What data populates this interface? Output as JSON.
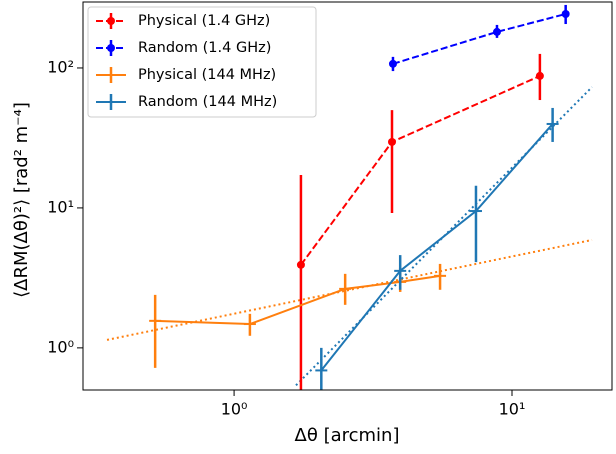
{
  "chart_data": {
    "type": "errorbar",
    "xlabel": "Δθ [arcmin]",
    "ylabel": "⟨ΔRM(Δθ)²⟩ [rad² m⁻⁴]",
    "xscale": "log",
    "yscale": "log",
    "xlim": [
      0.286,
      22.9
    ],
    "ylim": [
      0.5,
      296
    ],
    "xticks": [
      {
        "value": 1,
        "label": "10⁰"
      },
      {
        "value": 10,
        "label": "10¹"
      }
    ],
    "yticks": [
      {
        "value": 1,
        "label": "10⁰"
      },
      {
        "value": 10,
        "label": "10¹"
      },
      {
        "value": 100,
        "label": "10²"
      }
    ],
    "legend": "upper left",
    "series": [
      {
        "name": "Physical (1.4 GHz)",
        "color": "#ff0000",
        "linestyle": "dashed",
        "marker": "o",
        "x": [
          1.74,
          3.7,
          12.6
        ],
        "values": [
          3.92,
          29.6,
          87.7
        ],
        "low": [
          0.3,
          9.2,
          59
        ],
        "high": [
          17.2,
          50,
          126
        ]
      },
      {
        "name": "Random (1.4 GHz)",
        "color": "#0000ff",
        "linestyle": "dashed",
        "marker": "o",
        "x": [
          3.73,
          8.83,
          15.6
        ],
        "values": [
          107,
          181,
          243
        ],
        "low": [
          95,
          164,
          206
        ],
        "high": [
          120,
          203,
          282
        ]
      },
      {
        "name": "Physical (144 MHz)",
        "color": "#ff7f0e",
        "linestyle": "solid",
        "marker": "_",
        "x": [
          0.52,
          1.14,
          2.51,
          3.96,
          5.51
        ],
        "values": [
          1.56,
          1.48,
          2.64,
          2.96,
          3.27
        ],
        "low": [
          0.72,
          1.22,
          2.03,
          2.51,
          2.6
        ],
        "high": [
          2.39,
          1.75,
          3.38,
          3.73,
          3.98
        ]
      },
      {
        "name": "Random (144 MHz)",
        "color": "#1f77b4",
        "linestyle": "solid",
        "marker": "_",
        "x": [
          2.06,
          3.96,
          7.42,
          14.0
        ],
        "values": [
          0.69,
          3.55,
          9.5,
          39.8
        ],
        "low": [
          0.4,
          2.6,
          4.1,
          29.6
        ],
        "high": [
          1.0,
          4.6,
          14.4,
          51.8
        ]
      }
    ],
    "fit_lines": [
      {
        "color": "#ff7f0e",
        "x": [
          0.349,
          19.4
        ],
        "values": [
          1.14,
          5.9
        ]
      },
      {
        "color": "#1f77b4",
        "x": [
          1.67,
          19.4
        ],
        "values": [
          0.54,
          73
        ]
      }
    ]
  }
}
